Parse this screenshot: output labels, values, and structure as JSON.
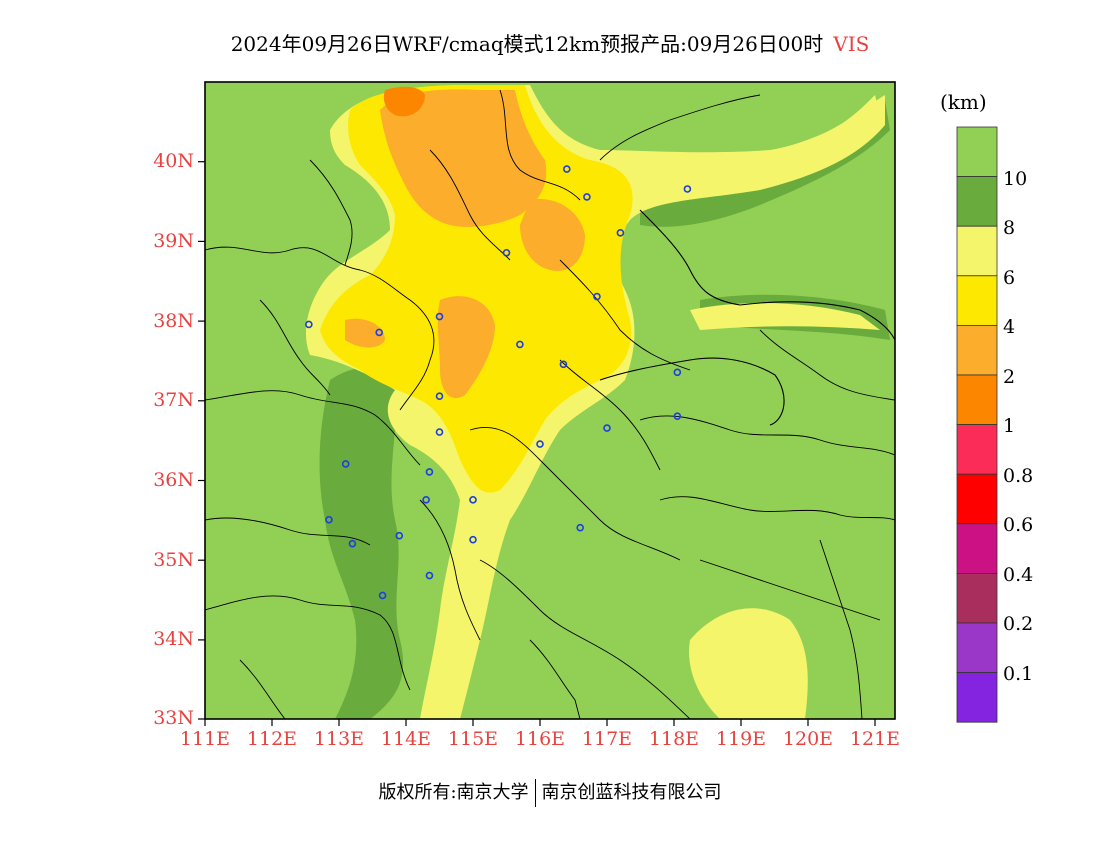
{
  "header": {
    "title": "2024年09月26日WRF/cmaq模式12km预报产品:09月26日00时",
    "variable": "VIS"
  },
  "colorbar": {
    "unit": "(km)",
    "levels": [
      {
        "label": "10",
        "color": "#92cf55"
      },
      {
        "label": "8",
        "color": "#6aab3d"
      },
      {
        "label": "6",
        "color": "#f5f56b"
      },
      {
        "label": "4",
        "color": "#fde802"
      },
      {
        "label": "2",
        "color": "#fbad2b"
      },
      {
        "label": "1",
        "color": "#fd8600"
      },
      {
        "label": "0.8",
        "color": "#fb2c57"
      },
      {
        "label": "0.6",
        "color": "#ff0000"
      },
      {
        "label": "0.4",
        "color": "#cc1184"
      },
      {
        "label": "0.2",
        "color": "#a92e5d"
      },
      {
        "label": "0.1",
        "color": "#9a36c8"
      },
      {
        "label": "",
        "color": "#8423e0"
      }
    ]
  },
  "axes": {
    "lat_labels": [
      "40N",
      "39N",
      "38N",
      "37N",
      "36N",
      "35N",
      "34N",
      "33N"
    ],
    "lon_labels": [
      "111E",
      "112E",
      "113E",
      "114E",
      "115E",
      "116E",
      "117E",
      "118E",
      "119E",
      "120E",
      "121E"
    ]
  },
  "stations": [
    {
      "lon": 116.4,
      "lat": 39.9
    },
    {
      "lon": 116.7,
      "lat": 39.55
    },
    {
      "lon": 117.2,
      "lat": 39.1
    },
    {
      "lon": 118.2,
      "lat": 39.65
    },
    {
      "lon": 115.5,
      "lat": 38.85
    },
    {
      "lon": 116.85,
      "lat": 38.3
    },
    {
      "lon": 112.55,
      "lat": 37.95
    },
    {
      "lon": 113.6,
      "lat": 37.85
    },
    {
      "lon": 114.5,
      "lat": 38.05
    },
    {
      "lon": 115.7,
      "lat": 37.7
    },
    {
      "lon": 116.35,
      "lat": 37.45
    },
    {
      "lon": 118.05,
      "lat": 37.35
    },
    {
      "lon": 114.5,
      "lat": 37.05
    },
    {
      "lon": 118.05,
      "lat": 36.8
    },
    {
      "lon": 117.0,
      "lat": 36.65
    },
    {
      "lon": 114.5,
      "lat": 36.6
    },
    {
      "lon": 116.0,
      "lat": 36.45
    },
    {
      "lon": 113.1,
      "lat": 36.2
    },
    {
      "lon": 114.35,
      "lat": 36.1
    },
    {
      "lon": 115.0,
      "lat": 35.75
    },
    {
      "lon": 114.3,
      "lat": 35.75
    },
    {
      "lon": 112.85,
      "lat": 35.5
    },
    {
      "lon": 116.6,
      "lat": 35.4
    },
    {
      "lon": 113.9,
      "lat": 35.3
    },
    {
      "lon": 113.2,
      "lat": 35.2
    },
    {
      "lon": 115.0,
      "lat": 35.25
    },
    {
      "lon": 114.35,
      "lat": 34.8
    },
    {
      "lon": 113.65,
      "lat": 34.55
    }
  ],
  "footer": {
    "left": "版权所有:南京大学",
    "right": "南京创蓝科技有限公司"
  }
}
